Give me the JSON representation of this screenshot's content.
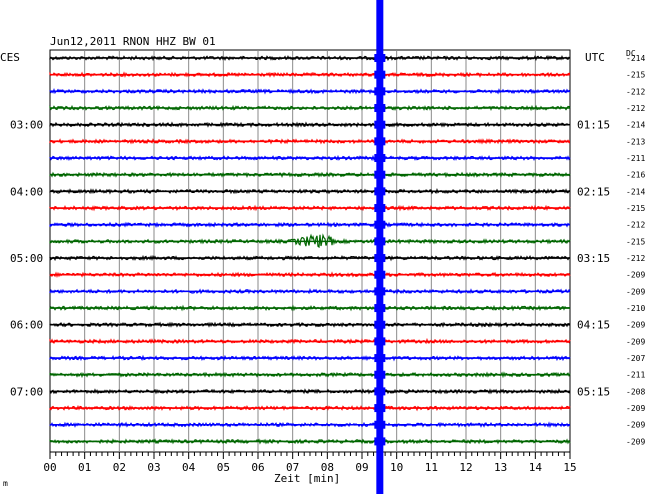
{
  "chart_data": {
    "type": "line",
    "title": "Jun12,2011   RNON HHZ BW 01",
    "left_tz": "CES",
    "right_tz": "UTC",
    "dc_label": "DC",
    "xlabel": "Zeit [min]",
    "xlim": [
      0,
      15
    ],
    "x_ticks": [
      "00",
      "01",
      "02",
      "03",
      "04",
      "05",
      "06",
      "07",
      "08",
      "09",
      "10",
      "11",
      "12",
      "13",
      "14",
      "15"
    ],
    "left_time_labels": [
      {
        "row": 4,
        "text": "03:00"
      },
      {
        "row": 8,
        "text": "04:00"
      },
      {
        "row": 12,
        "text": "05:00"
      },
      {
        "row": 16,
        "text": "06:00"
      },
      {
        "row": 20,
        "text": "07:00"
      }
    ],
    "right_time_labels": [
      {
        "row": 4,
        "text": "01:15"
      },
      {
        "row": 8,
        "text": "02:15"
      },
      {
        "row": 12,
        "text": "03:15"
      },
      {
        "row": 16,
        "text": "04:15"
      },
      {
        "row": 20,
        "text": "05:15"
      }
    ],
    "trace_colors": [
      "#000000",
      "#ff0000",
      "#0000ff",
      "#006600"
    ],
    "dc_offsets": [
      -214,
      -215,
      -212,
      -212,
      -214,
      -213,
      -211,
      -216,
      -214,
      -215,
      -212,
      -215,
      -212,
      -209,
      -209,
      -210,
      -209,
      -209,
      -207,
      -211,
      -208,
      -209,
      -209,
      -209
    ],
    "events": [
      {
        "type": "local_event",
        "row": 11,
        "minute_start": 6.9,
        "minute_end": 8.2,
        "peak_minute": 7.7
      },
      {
        "type": "teleseism",
        "row_start": 0,
        "row_end": 23,
        "minute": 9.5
      }
    ],
    "grid": true,
    "trace_count": 24
  },
  "footer": {
    "corner_mark": "m"
  }
}
